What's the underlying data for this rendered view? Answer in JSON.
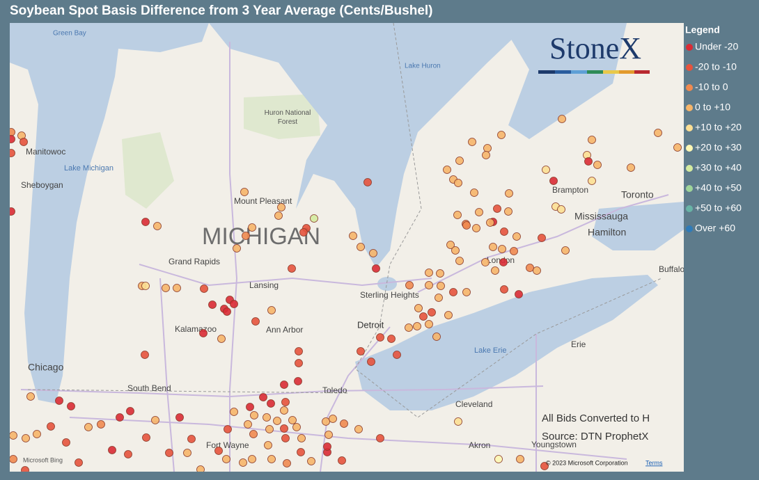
{
  "header": {
    "title": "Soybean Spot Basis Difference from 3 Year Average (Cents/Bushel)"
  },
  "legend": {
    "title": "Legend",
    "items": [
      {
        "label": "Under -20",
        "color": "#d92b35"
      },
      {
        "label": "-20 to -10",
        "color": "#e6533d"
      },
      {
        "label": "-10 to 0",
        "color": "#f08a50"
      },
      {
        "label": "0 to +10",
        "color": "#f6b56a"
      },
      {
        "label": "+10 to +20",
        "color": "#fcdf94"
      },
      {
        "label": "+20 to +30",
        "color": "#fdf7b4"
      },
      {
        "label": "+30 to +40",
        "color": "#d4eba0"
      },
      {
        "label": "+40 to +50",
        "color": "#9fd49a"
      },
      {
        "label": "+50 to +60",
        "color": "#68b3a6"
      },
      {
        "label": "Over +60",
        "color": "#2f7bb8"
      }
    ]
  },
  "logo": "StoneX",
  "map_labels": [
    "Green Bay",
    "Lake Huron",
    "Huron National Forest",
    "Manitowoc",
    "Lake Michigan",
    "Sheboygan",
    "Mount Pleasant",
    "MICHIGAN",
    "Grand Rapids",
    "Lansing",
    "Sterling Heights",
    "Detroit",
    "Kalamazoo",
    "Ann Arbor",
    "Chicago",
    "South Bend",
    "Toledo",
    "Fort Wayne",
    "Lake Erie",
    "Cleveland",
    "Akron",
    "Youngstown",
    "Erie",
    "Brampton",
    "Toronto",
    "Mississauga",
    "Hamilton",
    "London",
    "Buffalo"
  ],
  "notes": [
    "All Bids Converted to H",
    "Source: DTN ProphetX"
  ],
  "attribution": {
    "provider": "Microsoft Bing",
    "copyright": "© 2023 Microsoft Corporation",
    "terms": "Terms"
  }
}
